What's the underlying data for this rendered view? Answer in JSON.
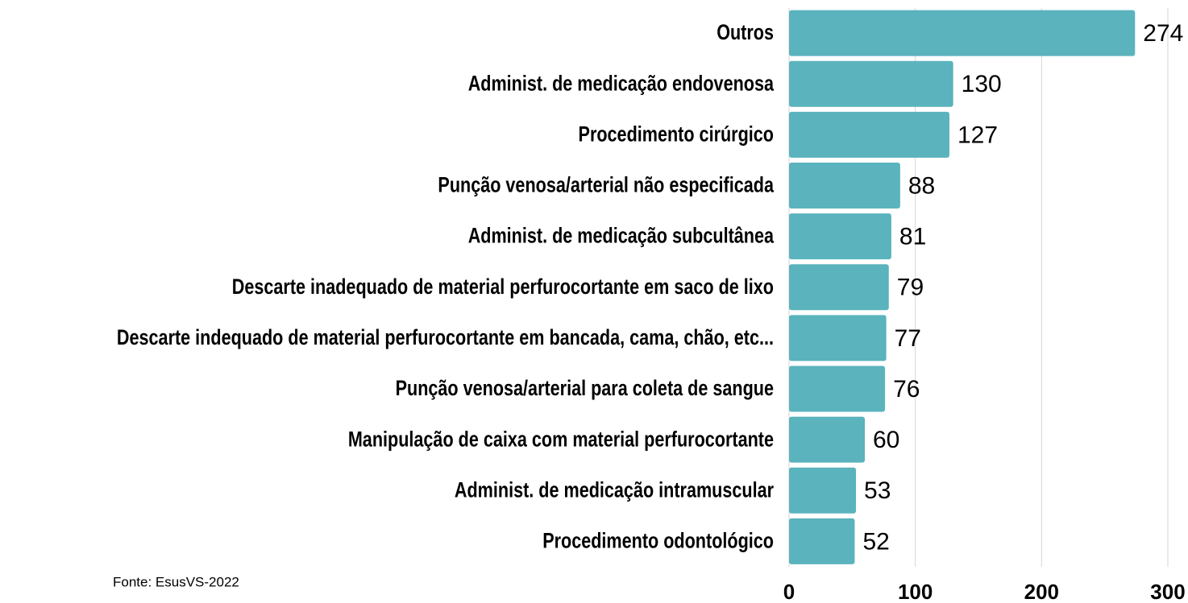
{
  "chart_data": {
    "type": "barh",
    "categories": [
      "Outros",
      "Administ. de medicação endovenosa",
      "Procedimento cirúrgico",
      "Punção venosa/arterial não especificada",
      "Administ. de medicação subcultânea",
      "Descarte inadequado de material perfurocortante em saco de lixo",
      "Descarte indequado de material perfurocortante em bancada, cama, chão, etc...",
      "Punção venosa/arterial para coleta de sangue",
      "Manipulação de caixa com material perfurocortante",
      "Administ. de medicação intramuscular",
      "Procedimento odontológico"
    ],
    "values": [
      274,
      130,
      127,
      88,
      81,
      79,
      77,
      76,
      60,
      53,
      52
    ],
    "color": "#5ab3bd",
    "xlim": [
      0,
      300
    ],
    "xticks": [
      0,
      100,
      200,
      300
    ],
    "grid": true,
    "source": "Fonte: EsusVS-2022"
  }
}
